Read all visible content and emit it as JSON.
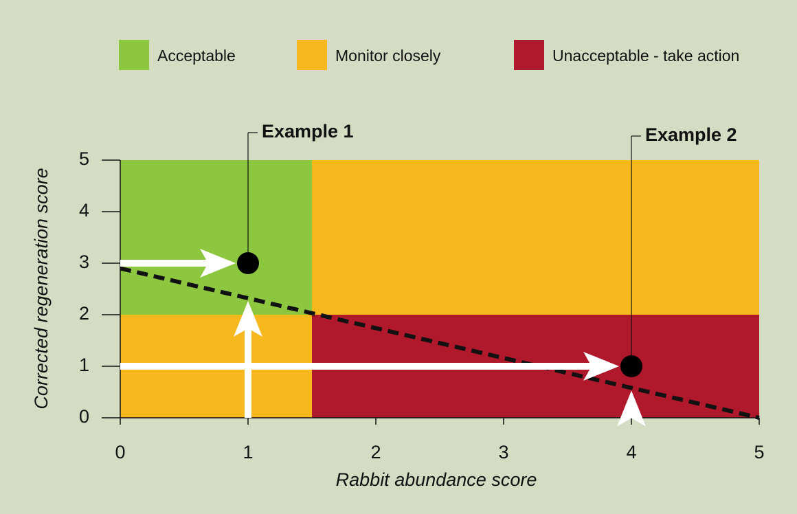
{
  "chart_data": {
    "type": "zone-scatter",
    "xlabel": "Rabbit abundance score",
    "ylabel": "Corrected regeneration score",
    "xlim": [
      0,
      5
    ],
    "ylim": [
      0,
      5
    ],
    "xticks": [
      0,
      1,
      2,
      3,
      4,
      5
    ],
    "yticks": [
      0,
      1,
      2,
      3,
      4,
      5
    ],
    "zones": [
      {
        "name": "Acceptable",
        "color": "#8dc63f",
        "rects": [
          {
            "x": [
              0,
              1.5
            ],
            "y": [
              2,
              5
            ]
          }
        ]
      },
      {
        "name": "Monitor closely",
        "color": "#f7b81e",
        "rects": [
          {
            "x": [
              1.5,
              5
            ],
            "y": [
              2,
              5
            ]
          },
          {
            "x": [
              0,
              1.5
            ],
            "y": [
              0,
              2
            ]
          }
        ]
      },
      {
        "name": "Unacceptable - take action",
        "color": "#b0182b",
        "rects": [
          {
            "x": [
              1.5,
              5
            ],
            "y": [
              0,
              2
            ]
          }
        ]
      }
    ],
    "threshold": {
      "x": [
        0,
        5
      ],
      "y": [
        2.9,
        0
      ]
    },
    "points": [
      {
        "label": "Example 1",
        "x": 1,
        "y": 3
      },
      {
        "label": "Example 2",
        "x": 4,
        "y": 1
      }
    ]
  }
}
